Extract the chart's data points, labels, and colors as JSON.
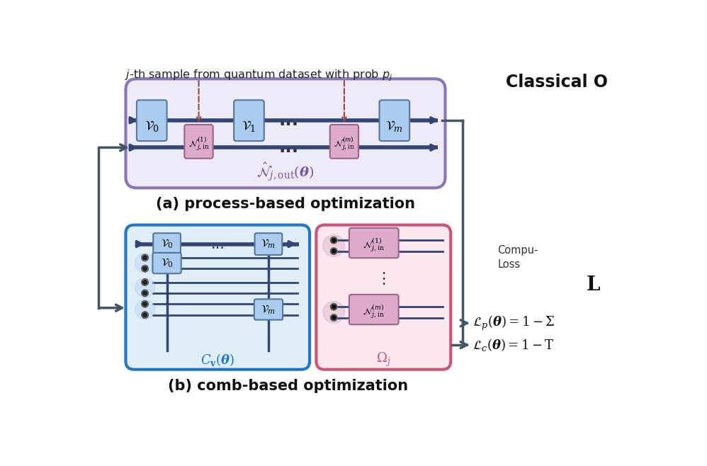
{
  "bg_color": "#ffffff",
  "annotation_top": "$j$-th sample from quantum dataset with prob $p_j$",
  "label_a": "(a) process-based optimization",
  "label_b": "(b) comb-based optimization",
  "hat_N_label": "$\\hat{\\mathcal{N}}_{j,\\mathrm{out}}(\\boldsymbol{\\theta})$",
  "C_v_label": "$C_{\\mathbf{v}}(\\boldsymbol{\\theta})$",
  "Omega_label": "$\\Omega_j$",
  "v0_label": "$\\mathcal{V}_0$",
  "v1_label": "$\\mathcal{V}_1$",
  "vm_label": "$\\mathcal{V}_m$",
  "N1_label": "$\\mathcal{N}_{j,\\mathrm{in}}^{(1)}$",
  "Nm_label": "$\\mathcal{N}_{j,\\mathrm{in}}^{(m)}$",
  "classical_label": "Classical O",
  "compute_loss_label": "Compu-\nLoss",
  "loss_p": "$\\mathcal{L}_p(\\boldsymbol{\\theta}) = 1 - \\Sigma$",
  "loss_c": "$\\mathcal{L}_c(\\boldsymbol{\\theta}) = 1 - \\mathrm{T}$",
  "loss_L": "$\\mathbf{L}$",
  "box_a_color": "#8877bb",
  "box_a_fill": "#eeeaf8",
  "box_b_color": "#2277cc",
  "box_b_fill": "#e0eef8",
  "box_omega_color": "#cc5577",
  "box_omega_fill": "#fce8ee",
  "v_box_fill": "#aaccee",
  "v_box_edge": "#557799",
  "n_box_fill": "#ddaacc",
  "n_box_edge": "#996688",
  "wire_color": "#334477",
  "connector_color": "#445566",
  "dashed_color": "#994444"
}
